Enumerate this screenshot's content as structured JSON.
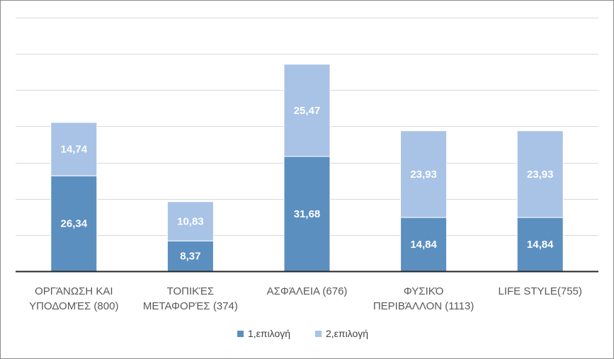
{
  "chart_data": {
    "type": "bar",
    "stacked": true,
    "categories": [
      [
        "ΟΡΓΆΝΩΣΗ ΚΑΙ",
        "ΥΠΟΔΟΜΈΣ (800)"
      ],
      [
        "ΤΟΠΙΚΈΣ",
        "ΜΕΤΑΦΟΡΈΣ (374)"
      ],
      [
        "ΑΣΦΆΛΕΙΑ (676)"
      ],
      [
        "ΦΥΣΙΚΌ",
        "ΠΕΡΙΒΆΛΛΟΝ (1113)"
      ],
      [
        "LIFE STYLE(755)"
      ]
    ],
    "series": [
      {
        "name": "1,επιλογή",
        "color": "#5b8fc0",
        "values": [
          26.34,
          8.37,
          31.68,
          14.84,
          14.84
        ],
        "labels": [
          "26,34",
          "8,37",
          "31,68",
          "14,84",
          "14,84"
        ]
      },
      {
        "name": "2,επιλογή",
        "color": "#a8c3e6",
        "values": [
          14.74,
          10.83,
          25.47,
          23.93,
          23.93
        ],
        "labels": [
          "14,74",
          "10,83",
          "25,47",
          "23,93",
          "23,93"
        ]
      }
    ],
    "ylim": [
      0,
      70
    ],
    "grid": true,
    "legend_position": "bottom"
  }
}
